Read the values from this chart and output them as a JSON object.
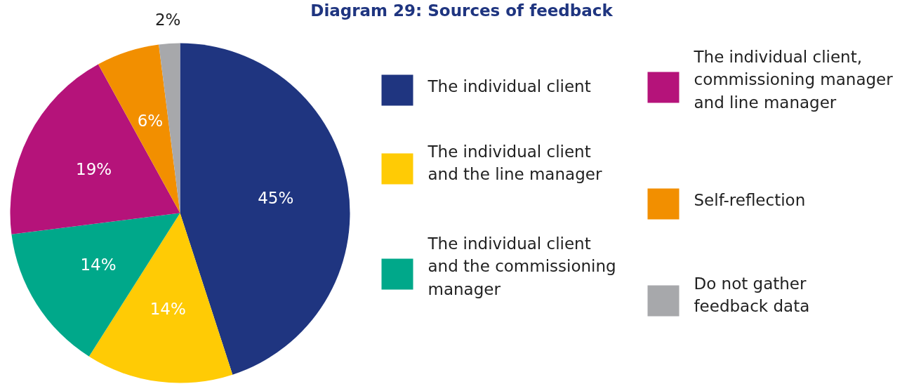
{
  "chart_data": {
    "type": "pie",
    "title": "Diagram 29: Sources of feedback",
    "categories": [
      "The individual client",
      "The individual client\nand the line manager",
      "The individual client\nand the commissioning\nmanager",
      "The individual client,\ncommissioning manager\nand line manager",
      "Self-reflection",
      "Do not gather\nfeedback data"
    ],
    "values": [
      45,
      14,
      14,
      19,
      6,
      2
    ],
    "colors": [
      "#1f3580",
      "#ffcb05",
      "#00a88a",
      "#b5137a",
      "#f28f00",
      "#a7a8ab"
    ],
    "value_labels": [
      "45%",
      "14%",
      "14%",
      "19%",
      "6%",
      "2%"
    ],
    "legend": "right"
  }
}
